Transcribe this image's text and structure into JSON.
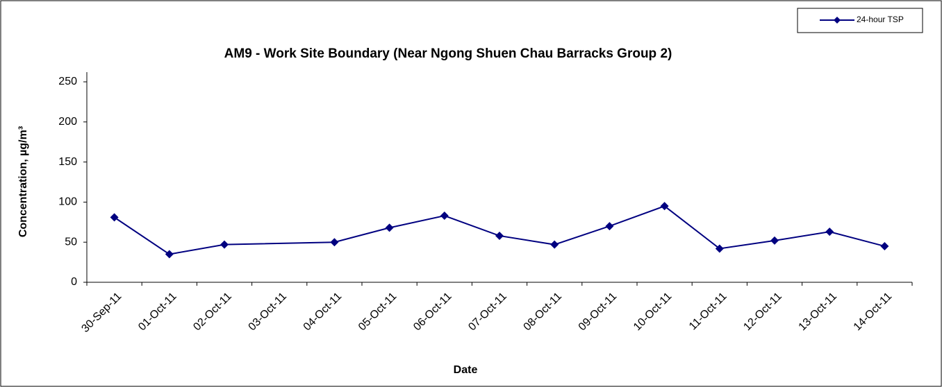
{
  "chart_data": {
    "type": "line",
    "title": "AM9 - Work Site Boundary (Near Ngong Shuen Chau Barracks Group 2)",
    "xlabel": "Date",
    "ylabel": "Concentration, µg/m³",
    "xticks": [
      "30-Sep-11",
      "01-Oct-11",
      "02-Oct-11",
      "03-Oct-11",
      "04-Oct-11",
      "05-Oct-11",
      "06-Oct-11",
      "07-Oct-11",
      "08-Oct-11",
      "09-Oct-11",
      "10-Oct-11",
      "11-Oct-11",
      "12-Oct-11",
      "13-Oct-11",
      "14-Oct-11"
    ],
    "x": [
      "30-Sep-11",
      "01-Oct-11",
      "02-Oct-11",
      "04-Oct-11",
      "05-Oct-11",
      "06-Oct-11",
      "07-Oct-11",
      "08-Oct-11",
      "09-Oct-11",
      "10-Oct-11",
      "11-Oct-11",
      "12-Oct-11",
      "13-Oct-11",
      "14-Oct-11"
    ],
    "series": [
      {
        "name": "24-hour TSP",
        "color": "#000080",
        "values": [
          81,
          35,
          47,
          50,
          68,
          83,
          58,
          47,
          70,
          95,
          42,
          52,
          63,
          45
        ]
      }
    ],
    "ylim": [
      0,
      250
    ],
    "yticks": [
      0,
      50,
      100,
      150,
      200,
      250
    ],
    "grid": false,
    "legend": "top-right"
  }
}
